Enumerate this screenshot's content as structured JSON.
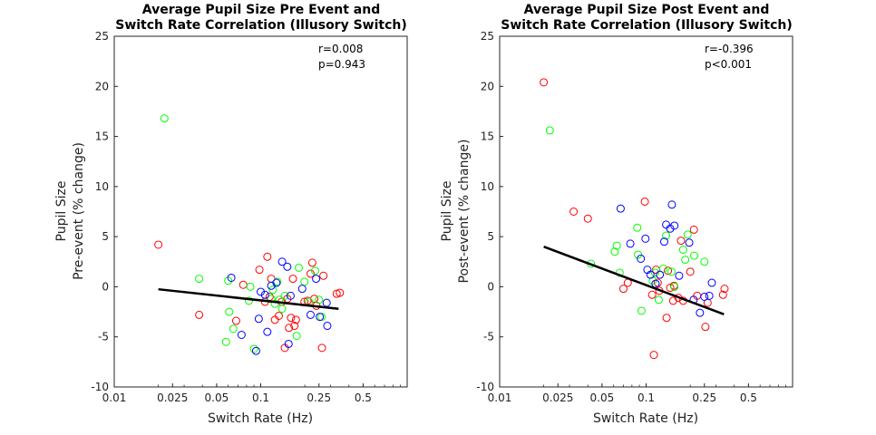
{
  "chart_data": [
    {
      "type": "scatter",
      "title": [
        "Average Pupil Size Pre Event and",
        "Switch Rate Correlation (Illusory Switch)"
      ],
      "xlabel": "Switch Rate (Hz)",
      "ylabel": [
        "Pupil Size",
        "Pre-event (% change)"
      ],
      "xscale": "log",
      "xlim": [
        0.01,
        1
      ],
      "ylim": [
        -10,
        25
      ],
      "xticks": [
        0.01,
        0.025,
        0.05,
        0.1,
        0.25,
        0.5
      ],
      "xtick_labels": [
        "0.01",
        "0.025",
        "0.05",
        "0.1",
        "0.25",
        "0.5"
      ],
      "yticks": [
        -10,
        -5,
        0,
        5,
        10,
        15,
        20,
        25
      ],
      "ytick_labels": [
        "-10",
        "-5",
        "0",
        "5",
        "10",
        "15",
        "20",
        "25"
      ],
      "annotation": [
        "r=0.008",
        "p=0.943"
      ],
      "fit_line": {
        "x": [
          0.02,
          0.34
        ],
        "y": [
          -0.25,
          -2.2
        ]
      },
      "series": [
        {
          "color": "#ff0000",
          "points": [
            [
              0.02,
              4.2
            ],
            [
              0.038,
              -2.8
            ],
            [
              0.068,
              -3.4
            ],
            [
              0.076,
              0.2
            ],
            [
              0.098,
              1.7
            ],
            [
              0.107,
              -1.5
            ],
            [
              0.111,
              3.0
            ],
            [
              0.115,
              -1.0
            ],
            [
              0.118,
              0.8
            ],
            [
              0.125,
              -3.3
            ],
            [
              0.133,
              -2.9
            ],
            [
              0.139,
              -1.5
            ],
            [
              0.146,
              -6.1
            ],
            [
              0.152,
              -1.2
            ],
            [
              0.156,
              -4.1
            ],
            [
              0.161,
              -3.1
            ],
            [
              0.166,
              0.8
            ],
            [
              0.17,
              -3.9
            ],
            [
              0.174,
              -3.3
            ],
            [
              0.199,
              -1.5
            ],
            [
              0.209,
              -1.4
            ],
            [
              0.219,
              1.3
            ],
            [
              0.225,
              2.4
            ],
            [
              0.232,
              -1.2
            ],
            [
              0.24,
              -1.9
            ],
            [
              0.262,
              -6.1
            ],
            [
              0.268,
              1.1
            ],
            [
              0.33,
              -0.7
            ],
            [
              0.347,
              -0.6
            ]
          ]
        },
        {
          "color": "#00ff00",
          "points": [
            [
              0.022,
              16.8
            ],
            [
              0.038,
              0.8
            ],
            [
              0.058,
              -5.5
            ],
            [
              0.06,
              0.6
            ],
            [
              0.061,
              -2.5
            ],
            [
              0.065,
              -4.2
            ],
            [
              0.083,
              -1.4
            ],
            [
              0.085,
              0.0
            ],
            [
              0.09,
              -6.2
            ],
            [
              0.118,
              -1.2
            ],
            [
              0.121,
              -0.3
            ],
            [
              0.125,
              -1.7
            ],
            [
              0.13,
              0.5
            ],
            [
              0.134,
              -1.3
            ],
            [
              0.14,
              -2.2
            ],
            [
              0.146,
              -0.9
            ],
            [
              0.176,
              -4.9
            ],
            [
              0.182,
              1.9
            ],
            [
              0.199,
              0.5
            ],
            [
              0.214,
              -1.5
            ],
            [
              0.235,
              1.6
            ],
            [
              0.25,
              -1.3
            ],
            [
              0.26,
              -3.0
            ]
          ]
        },
        {
          "color": "#0000ff",
          "points": [
            [
              0.063,
              0.9
            ],
            [
              0.074,
              -4.8
            ],
            [
              0.093,
              -6.4
            ],
            [
              0.097,
              -3.2
            ],
            [
              0.1,
              -0.5
            ],
            [
              0.107,
              -0.8
            ],
            [
              0.111,
              -4.5
            ],
            [
              0.118,
              0.1
            ],
            [
              0.128,
              0.4
            ],
            [
              0.14,
              2.5
            ],
            [
              0.152,
              2.0
            ],
            [
              0.155,
              -5.7
            ],
            [
              0.16,
              -0.9
            ],
            [
              0.192,
              -0.2
            ],
            [
              0.219,
              -2.8
            ],
            [
              0.239,
              0.8
            ],
            [
              0.253,
              -3.0
            ],
            [
              0.282,
              -1.6
            ],
            [
              0.285,
              -3.9
            ]
          ]
        }
      ]
    },
    {
      "type": "scatter",
      "title": [
        "Average Pupil Size Post Event and",
        "Switch Rate Correlation (Illusory Switch)"
      ],
      "xlabel": "Switch Rate (Hz)",
      "ylabel": [
        "Pupil Size",
        "Post-event (% change)"
      ],
      "xscale": "log",
      "xlim": [
        0.01,
        1
      ],
      "ylim": [
        -10,
        25
      ],
      "xticks": [
        0.01,
        0.025,
        0.05,
        0.1,
        0.25,
        0.5
      ],
      "xtick_labels": [
        "0.01",
        "0.025",
        "0.05",
        "0.1",
        "0.25",
        "0.5"
      ],
      "yticks": [
        -10,
        -5,
        0,
        5,
        10,
        15,
        20,
        25
      ],
      "ytick_labels": [
        "-10",
        "-5",
        "0",
        "5",
        "10",
        "15",
        "20",
        "25"
      ],
      "annotation": [
        "r=-0.396",
        "p<0.001"
      ],
      "fit_line": {
        "x": [
          0.02,
          0.34
        ],
        "y": [
          4.0,
          -2.75
        ]
      },
      "series": [
        {
          "color": "#ff0000",
          "points": [
            [
              0.02,
              20.4
            ],
            [
              0.032,
              7.5
            ],
            [
              0.04,
              6.8
            ],
            [
              0.07,
              -0.2
            ],
            [
              0.075,
              0.4
            ],
            [
              0.098,
              8.5
            ],
            [
              0.11,
              -0.8
            ],
            [
              0.113,
              -6.8
            ],
            [
              0.117,
              1.7
            ],
            [
              0.12,
              0.4
            ],
            [
              0.123,
              -0.4
            ],
            [
              0.138,
              -3.1
            ],
            [
              0.141,
              1.6
            ],
            [
              0.146,
              -0.1
            ],
            [
              0.153,
              -1.4
            ],
            [
              0.155,
              0.1
            ],
            [
              0.166,
              -1.1
            ],
            [
              0.173,
              4.6
            ],
            [
              0.179,
              -1.4
            ],
            [
              0.2,
              1.5
            ],
            [
              0.212,
              5.7
            ],
            [
              0.223,
              -0.9
            ],
            [
              0.254,
              -4.0
            ],
            [
              0.263,
              -1.6
            ],
            [
              0.335,
              -0.8
            ],
            [
              0.343,
              -0.2
            ]
          ]
        },
        {
          "color": "#00ff00",
          "points": [
            [
              0.022,
              15.6
            ],
            [
              0.042,
              2.3
            ],
            [
              0.061,
              3.5
            ],
            [
              0.063,
              4.1
            ],
            [
              0.066,
              1.4
            ],
            [
              0.087,
              5.9
            ],
            [
              0.088,
              3.2
            ],
            [
              0.093,
              -2.4
            ],
            [
              0.111,
              0.6
            ],
            [
              0.115,
              1.4
            ],
            [
              0.122,
              -1.3
            ],
            [
              0.131,
              1.8
            ],
            [
              0.137,
              5.1
            ],
            [
              0.149,
              1.5
            ],
            [
              0.156,
              0.0
            ],
            [
              0.179,
              3.7
            ],
            [
              0.185,
              2.7
            ],
            [
              0.192,
              5.2
            ],
            [
              0.213,
              3.1
            ],
            [
              0.25,
              2.5
            ]
          ]
        },
        {
          "color": "#0000ff",
          "points": [
            [
              0.067,
              7.8
            ],
            [
              0.078,
              4.3
            ],
            [
              0.092,
              2.8
            ],
            [
              0.099,
              4.8
            ],
            [
              0.102,
              1.7
            ],
            [
              0.107,
              1.2
            ],
            [
              0.116,
              0.3
            ],
            [
              0.124,
              1.2
            ],
            [
              0.133,
              4.5
            ],
            [
              0.137,
              6.2
            ],
            [
              0.146,
              5.8
            ],
            [
              0.15,
              8.2
            ],
            [
              0.156,
              6.1
            ],
            [
              0.168,
              1.1
            ],
            [
              0.197,
              4.4
            ],
            [
              0.211,
              -1.3
            ],
            [
              0.233,
              -2.6
            ],
            [
              0.25,
              -1.0
            ],
            [
              0.27,
              -0.9
            ],
            [
              0.281,
              0.4
            ]
          ]
        }
      ]
    }
  ]
}
